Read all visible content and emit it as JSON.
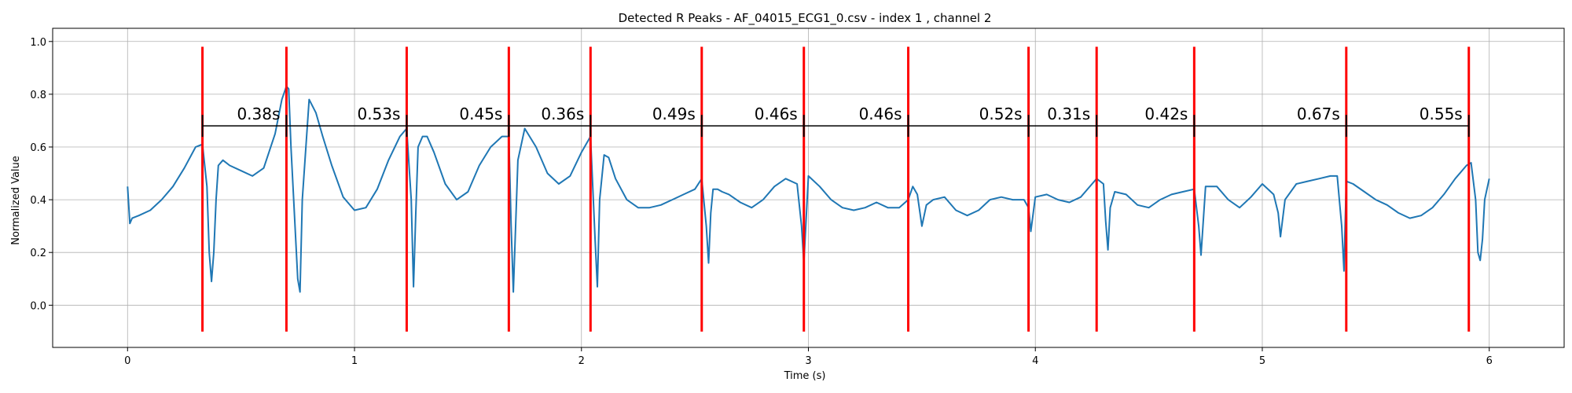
{
  "chart_data": {
    "type": "line",
    "title": "Detected R Peaks - AF_04015_ECG1_0.csv - index 1 , channel 2",
    "xlabel": "Time (s)",
    "ylabel": "Normalized Value",
    "xlim": [
      -0.33,
      6.33
    ],
    "ylim": [
      -0.16,
      1.05
    ],
    "xticks": [
      0,
      1,
      2,
      3,
      4,
      5,
      6
    ],
    "xtick_labels": [
      "0",
      "1",
      "2",
      "3",
      "4",
      "5",
      "6"
    ],
    "yticks": [
      0.0,
      0.2,
      0.4,
      0.6,
      0.8,
      1.0
    ],
    "ytick_labels": [
      "0.0",
      "0.2",
      "0.4",
      "0.6",
      "0.8",
      "1.0"
    ],
    "grid": true,
    "series": [
      {
        "color": "#1f77b4",
        "x": [
          0.0,
          0.01,
          0.02,
          0.05,
          0.1,
          0.15,
          0.2,
          0.25,
          0.3,
          0.33,
          0.35,
          0.36,
          0.37,
          0.38,
          0.39,
          0.4,
          0.42,
          0.45,
          0.5,
          0.55,
          0.6,
          0.65,
          0.68,
          0.7,
          0.71,
          0.72,
          0.75,
          0.76,
          0.77,
          0.8,
          0.83,
          0.86,
          0.9,
          0.95,
          1.0,
          1.05,
          1.1,
          1.15,
          1.2,
          1.23,
          1.25,
          1.26,
          1.27,
          1.28,
          1.3,
          1.32,
          1.35,
          1.4,
          1.45,
          1.5,
          1.55,
          1.6,
          1.65,
          1.68,
          1.69,
          1.7,
          1.71,
          1.72,
          1.75,
          1.8,
          1.85,
          1.9,
          1.95,
          2.0,
          2.04,
          2.06,
          2.07,
          2.08,
          2.1,
          2.12,
          2.15,
          2.2,
          2.25,
          2.3,
          2.35,
          2.4,
          2.45,
          2.5,
          2.53,
          2.55,
          2.56,
          2.57,
          2.58,
          2.6,
          2.62,
          2.65,
          2.7,
          2.75,
          2.8,
          2.85,
          2.9,
          2.95,
          2.97,
          2.98,
          3.0,
          3.05,
          3.1,
          3.15,
          3.2,
          3.25,
          3.3,
          3.35,
          3.4,
          3.44,
          3.46,
          3.48,
          3.5,
          3.52,
          3.55,
          3.6,
          3.65,
          3.7,
          3.75,
          3.8,
          3.85,
          3.9,
          3.95,
          3.97,
          3.98,
          4.0,
          4.05,
          4.1,
          4.15,
          4.2,
          4.25,
          4.27,
          4.3,
          4.31,
          4.32,
          4.33,
          4.35,
          4.4,
          4.45,
          4.5,
          4.55,
          4.6,
          4.65,
          4.7,
          4.72,
          4.73,
          4.75,
          4.8,
          4.85,
          4.9,
          4.95,
          5.0,
          5.05,
          5.07,
          5.08,
          5.1,
          5.15,
          5.2,
          5.25,
          5.3,
          5.33,
          5.35,
          5.36,
          5.37,
          5.4,
          5.45,
          5.5,
          5.55,
          5.6,
          5.65,
          5.7,
          5.75,
          5.8,
          5.85,
          5.9,
          5.92,
          5.94,
          5.95,
          5.96,
          5.97,
          5.98,
          6.0
        ],
        "y": [
          0.45,
          0.31,
          0.33,
          0.34,
          0.36,
          0.4,
          0.45,
          0.52,
          0.6,
          0.61,
          0.45,
          0.2,
          0.09,
          0.2,
          0.4,
          0.53,
          0.55,
          0.53,
          0.51,
          0.49,
          0.52,
          0.65,
          0.78,
          0.83,
          0.82,
          0.6,
          0.1,
          0.05,
          0.4,
          0.78,
          0.73,
          0.64,
          0.53,
          0.41,
          0.36,
          0.37,
          0.44,
          0.55,
          0.64,
          0.67,
          0.4,
          0.07,
          0.35,
          0.6,
          0.64,
          0.64,
          0.58,
          0.46,
          0.4,
          0.43,
          0.53,
          0.6,
          0.64,
          0.64,
          0.3,
          0.05,
          0.3,
          0.55,
          0.67,
          0.6,
          0.5,
          0.46,
          0.49,
          0.58,
          0.64,
          0.25,
          0.07,
          0.4,
          0.57,
          0.56,
          0.48,
          0.4,
          0.37,
          0.37,
          0.38,
          0.4,
          0.42,
          0.44,
          0.48,
          0.3,
          0.16,
          0.35,
          0.44,
          0.44,
          0.43,
          0.42,
          0.39,
          0.37,
          0.4,
          0.45,
          0.48,
          0.46,
          0.3,
          0.16,
          0.49,
          0.45,
          0.4,
          0.37,
          0.36,
          0.37,
          0.39,
          0.37,
          0.37,
          0.4,
          0.45,
          0.42,
          0.3,
          0.38,
          0.4,
          0.41,
          0.36,
          0.34,
          0.36,
          0.4,
          0.41,
          0.4,
          0.4,
          0.37,
          0.28,
          0.41,
          0.42,
          0.4,
          0.39,
          0.41,
          0.46,
          0.48,
          0.46,
          0.32,
          0.21,
          0.37,
          0.43,
          0.42,
          0.38,
          0.37,
          0.4,
          0.42,
          0.43,
          0.44,
          0.3,
          0.19,
          0.45,
          0.45,
          0.4,
          0.37,
          0.41,
          0.46,
          0.42,
          0.35,
          0.26,
          0.4,
          0.46,
          0.47,
          0.48,
          0.49,
          0.49,
          0.3,
          0.13,
          0.47,
          0.46,
          0.43,
          0.4,
          0.38,
          0.35,
          0.33,
          0.34,
          0.37,
          0.42,
          0.48,
          0.53,
          0.54,
          0.4,
          0.2,
          0.17,
          0.25,
          0.4,
          0.48
        ]
      }
    ],
    "r_peaks": {
      "color": "#ff0000",
      "times": [
        0.33,
        0.7,
        1.23,
        1.68,
        2.04,
        2.53,
        2.98,
        3.44,
        3.97,
        4.27,
        4.7,
        5.37,
        5.91
      ],
      "y_range": [
        -0.1,
        0.98
      ]
    },
    "rr_intervals": {
      "bracket_y": 0.68,
      "labels": [
        "0.38s",
        "0.53s",
        "0.45s",
        "0.36s",
        "0.49s",
        "0.46s",
        "0.46s",
        "0.52s",
        "0.31s",
        "0.42s",
        "0.67s",
        "0.55s"
      ]
    }
  }
}
